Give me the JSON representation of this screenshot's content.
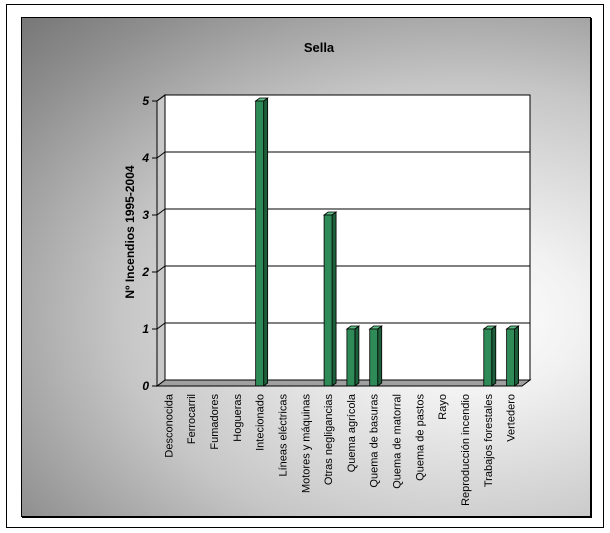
{
  "chart_data": {
    "type": "bar",
    "title": "Sella",
    "xlabel": "",
    "ylabel": "Nº Incendios 1995-2004",
    "ylim": [
      0,
      5
    ],
    "yticks": [
      "0",
      "1",
      "2",
      "3",
      "4",
      "5"
    ],
    "grid": true,
    "legend": "none",
    "bar_color": "#2e8b57",
    "categories": [
      "Desconocida",
      "Ferrocarril",
      "Fumadores",
      "Hogueras",
      "Intecionado",
      "Líneas eléctricas",
      "Motores y máquinas",
      "Otras negligancias",
      "Quema agrícola",
      "Quema de basuras",
      "Quema de matorral",
      "Quema de pastos",
      "Rayo",
      "Reproducción incendio",
      "Trabajos forestales",
      "Vertedero"
    ],
    "values": [
      0,
      0,
      0,
      0,
      5,
      0,
      0,
      3,
      1,
      1,
      0,
      0,
      0,
      0,
      1,
      1
    ]
  }
}
